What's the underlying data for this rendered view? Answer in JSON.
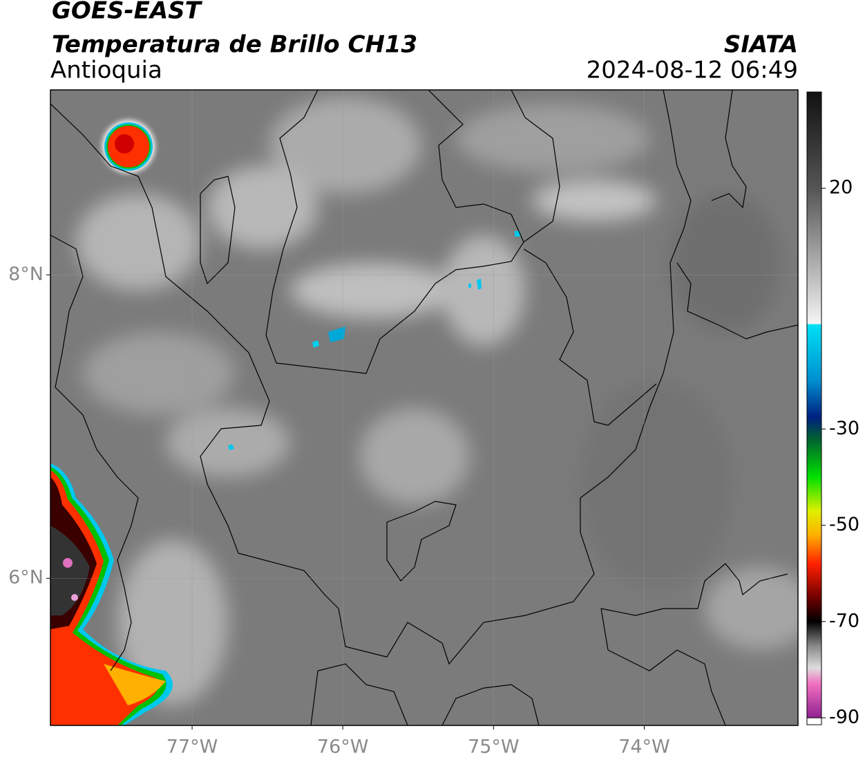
{
  "chart_data": {
    "type": "map",
    "title": "GOES-EAST",
    "subtitle": "Temperatura de Brillo CH13",
    "region": "Antioquia",
    "source": "SIATA",
    "datetime": "2024-08-12 06:49",
    "xlim": [
      -77.94,
      -72.98
    ],
    "ylim": [
      5.03,
      9.22
    ],
    "xticks": [
      {
        "value": -77,
        "label": "77°W"
      },
      {
        "value": -76,
        "label": "76°W"
      },
      {
        "value": -75,
        "label": "75°W"
      },
      {
        "value": -74,
        "label": "74°W"
      }
    ],
    "yticks": [
      {
        "value": 8,
        "label": "8°N"
      },
      {
        "value": 6,
        "label": "6°N"
      }
    ],
    "grid": true,
    "colorbar": {
      "clim": [
        -90,
        40
      ],
      "ticks": [
        20,
        -30,
        -50,
        -70,
        -90
      ]
    }
  }
}
